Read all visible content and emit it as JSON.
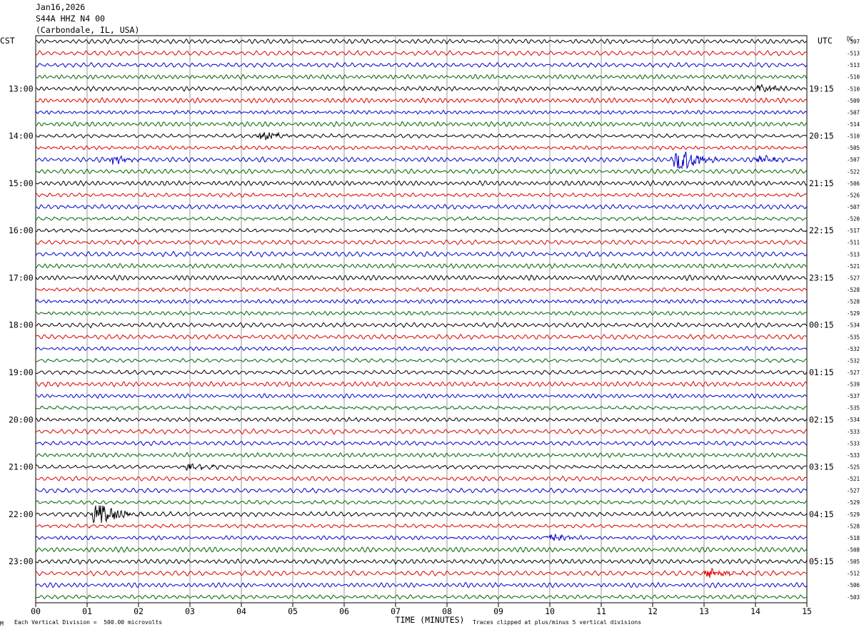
{
  "header": {
    "date": "Jan16,2026",
    "station": "S44A HHZ N4 00",
    "location": "(Carbondale, IL, USA)"
  },
  "footer": {
    "scale_note": "Each Vertical Division =  500.00 microvolts",
    "clip_note": "Traces clipped at plus/minus 5 vertical divisions",
    "corner_mark": "M"
  },
  "colors": {
    "cycle": [
      "#000000",
      "#dd0000",
      "#0000cc",
      "#006400"
    ],
    "grid": "#808080"
  },
  "chart_data": {
    "type": "line",
    "title": "",
    "xlabel": "TIME (MINUTES)",
    "xlim": [
      0,
      15
    ],
    "x_ticks": [
      "00",
      "01",
      "02",
      "03",
      "04",
      "05",
      "06",
      "07",
      "08",
      "09",
      "10",
      "11",
      "12",
      "13",
      "14",
      "15"
    ],
    "left_axis_title": "CST",
    "right_axis_title": "UTC",
    "dc_label": "DC",
    "left_hour_labels": [
      "13:00",
      "14:00",
      "15:00",
      "16:00",
      "17:00",
      "18:00",
      "19:00",
      "20:00",
      "21:00",
      "22:00",
      "23:00"
    ],
    "right_hour_labels": [
      "19:15",
      "20:15",
      "21:15",
      "22:15",
      "23:15",
      "00:15",
      "01:15",
      "02:15",
      "03:15",
      "04:15",
      "05:15"
    ],
    "traces_per_hour": 4,
    "trace_count": 48,
    "dc_offsets": [
      -507,
      -513,
      -513,
      -510,
      -510,
      -509,
      -507,
      -514,
      -510,
      -505,
      -507,
      -522,
      -506,
      -526,
      -507,
      -520,
      -517,
      -511,
      -513,
      -521,
      -527,
      -528,
      -528,
      -529,
      -534,
      -535,
      -532,
      -532,
      -527,
      -539,
      -537,
      -535,
      -534,
      -533,
      -533,
      -533,
      -525,
      -521,
      -527,
      -529,
      -529,
      -528,
      -518,
      -508,
      -505,
      -512,
      -506,
      -503
    ],
    "events": [
      {
        "trace": 4,
        "minute": 14.1,
        "amplitude": 1.2
      },
      {
        "trace": 8,
        "minute": 4.4,
        "amplitude": 1.3
      },
      {
        "trace": 10,
        "minute": 1.5,
        "amplitude": 1.0
      },
      {
        "trace": 10,
        "minute": 12.5,
        "amplitude": 3.2
      },
      {
        "trace": 10,
        "minute": 14.1,
        "amplitude": 1.0
      },
      {
        "trace": 36,
        "minute": 3.0,
        "amplitude": 0.9
      },
      {
        "trace": 40,
        "minute": 1.2,
        "amplitude": 3.5
      },
      {
        "trace": 42,
        "minute": 10.0,
        "amplitude": 1.0
      },
      {
        "trace": 45,
        "minute": 13.1,
        "amplitude": 1.2
      }
    ]
  }
}
